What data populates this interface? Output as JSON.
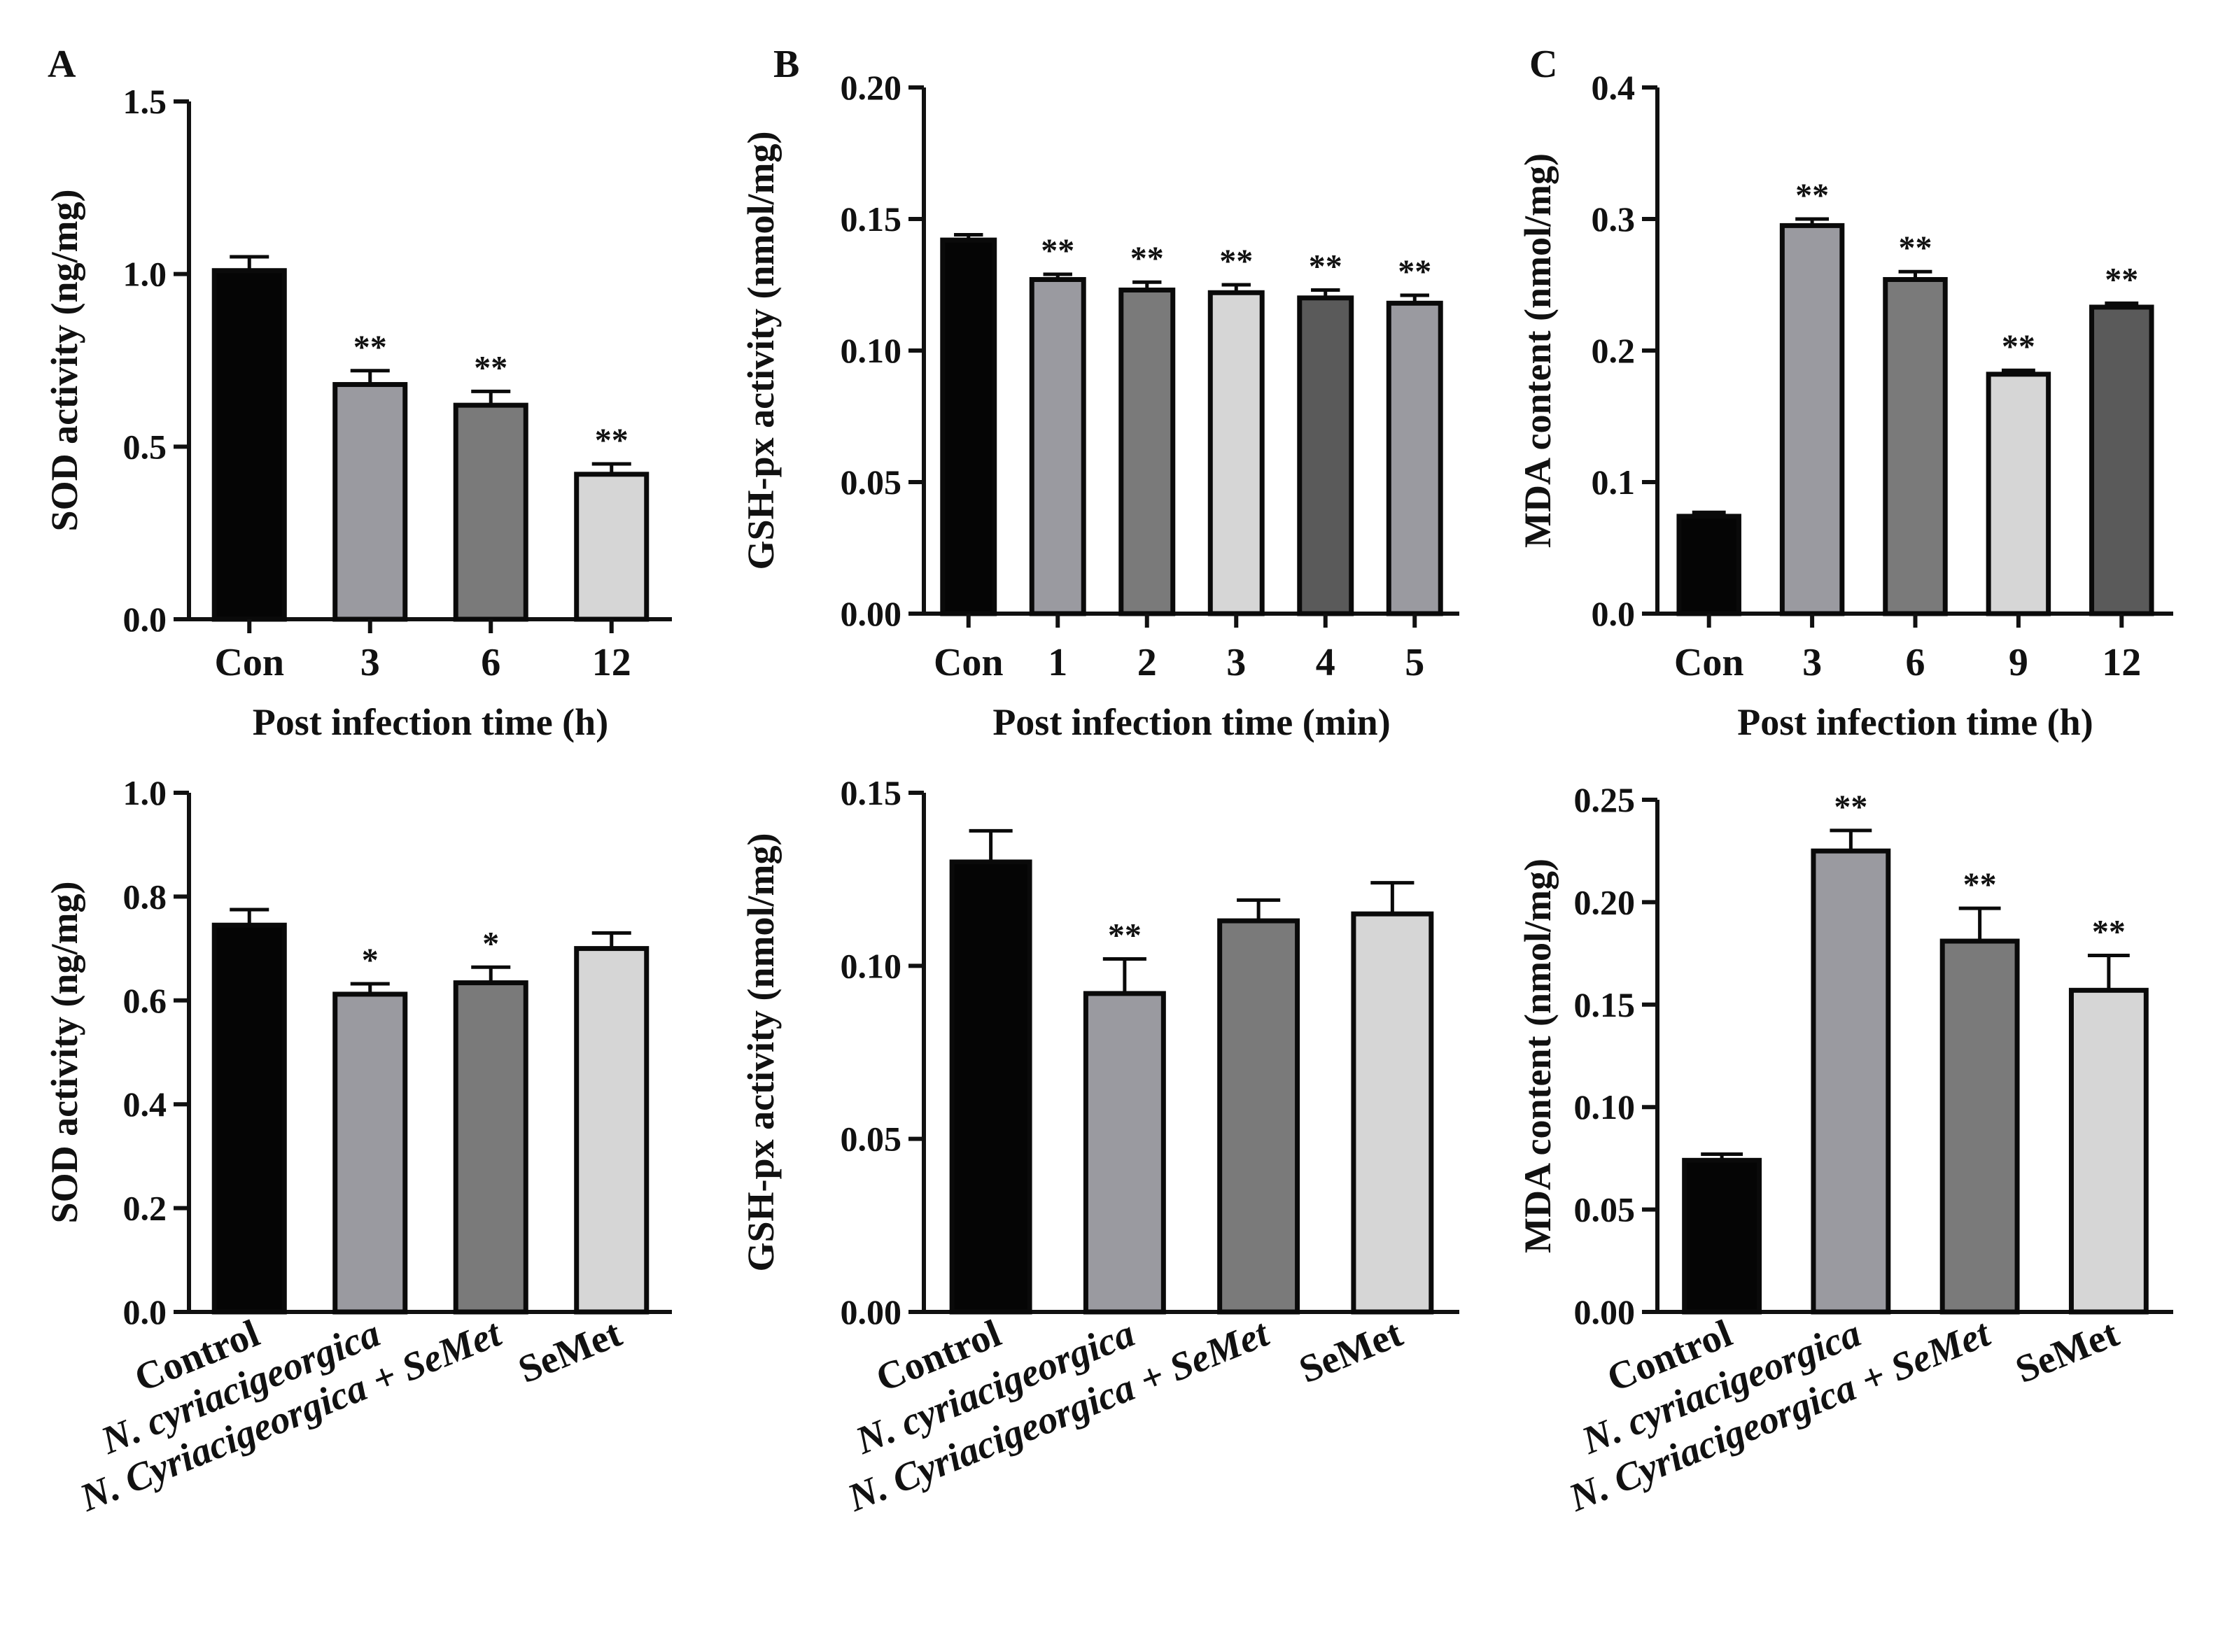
{
  "figure": {
    "colors": {
      "axis": "#111111",
      "bar_stroke": "#0a0a0a",
      "black": "#050505",
      "gray_mid": "#9a9aa0",
      "gray_dark": "#7a7a7a",
      "gray_light": "#d6d6d6",
      "gray_darkest": "#5a5a5a"
    }
  },
  "chart_data": [
    {
      "id": "A-top",
      "type": "bar",
      "panel_letter": "A",
      "categories": [
        "Con",
        "3",
        "6",
        "12"
      ],
      "values": [
        1.01,
        0.68,
        0.62,
        0.42
      ],
      "errors": [
        0.04,
        0.04,
        0.04,
        0.03
      ],
      "significance": [
        "",
        "**",
        "**",
        "**"
      ],
      "bar_colors": [
        "#050505",
        "#9a9aa0",
        "#7a7a7a",
        "#d6d6d6"
      ],
      "xlabel": "Post infection time (h)",
      "ylabel": "SOD activity (ng/mg)",
      "ylim": [
        0,
        1.5
      ],
      "yticks": [
        0.0,
        0.5,
        1.0,
        1.5
      ],
      "ytick_labels": [
        "0.0",
        "0.5",
        "1.0",
        "1.5"
      ],
      "rotated_labels": false,
      "italic_categories": []
    },
    {
      "id": "B-top",
      "type": "bar",
      "panel_letter": "B",
      "categories": [
        "Con",
        "1",
        "2",
        "3",
        "4",
        "5"
      ],
      "values": [
        0.142,
        0.127,
        0.123,
        0.122,
        0.12,
        0.118
      ],
      "errors": [
        0.002,
        0.002,
        0.003,
        0.003,
        0.003,
        0.003
      ],
      "significance": [
        "",
        "**",
        "**",
        "**",
        "**",
        "**"
      ],
      "bar_colors": [
        "#050505",
        "#9a9aa0",
        "#7a7a7a",
        "#d6d6d6",
        "#5a5a5a",
        "#9a9aa0"
      ],
      "xlabel": "Post infection time (min)",
      "ylabel": "GSH-px activity  (nmol/mg)",
      "ylim": [
        0,
        0.2
      ],
      "yticks": [
        0.0,
        0.05,
        0.1,
        0.15,
        0.2
      ],
      "ytick_labels": [
        "0.00",
        "0.05",
        "0.10",
        "0.15",
        "0.20"
      ],
      "rotated_labels": false,
      "italic_categories": []
    },
    {
      "id": "C-top",
      "type": "bar",
      "panel_letter": "C",
      "categories": [
        "Con",
        "3",
        "6",
        "9",
        "12"
      ],
      "values": [
        0.074,
        0.295,
        0.254,
        0.182,
        0.233
      ],
      "errors": [
        0.003,
        0.005,
        0.006,
        0.003,
        0.003
      ],
      "significance": [
        "",
        "**",
        "**",
        "**",
        "**"
      ],
      "bar_colors": [
        "#050505",
        "#9a9aa0",
        "#7a7a7a",
        "#d6d6d6",
        "#5a5a5a"
      ],
      "xlabel": "Post infection time (h)",
      "ylabel": "MDA content (nmol/mg)",
      "ylim": [
        0,
        0.4
      ],
      "yticks": [
        0.0,
        0.1,
        0.2,
        0.3,
        0.4
      ],
      "ytick_labels": [
        "0.0",
        "0.1",
        "0.2",
        "0.3",
        "0.4"
      ],
      "rotated_labels": false,
      "italic_categories": []
    },
    {
      "id": "A-bottom",
      "type": "bar",
      "panel_letter": "",
      "categories": [
        "Control",
        "N. cyriacigeorgica",
        "N. Cyriacigeorgica + SeMet",
        "SeMet"
      ],
      "values": [
        0.745,
        0.612,
        0.634,
        0.7
      ],
      "errors": [
        0.03,
        0.02,
        0.03,
        0.03
      ],
      "significance": [
        "",
        "*",
        "*",
        ""
      ],
      "bar_colors": [
        "#050505",
        "#9a9aa0",
        "#7a7a7a",
        "#d6d6d6"
      ],
      "xlabel": "",
      "ylabel": "SOD  activity (ng/mg)",
      "ylim": [
        0,
        1.0
      ],
      "yticks": [
        0.0,
        0.2,
        0.4,
        0.6,
        0.8,
        1.0
      ],
      "ytick_labels": [
        "0.0",
        "0.2",
        "0.4",
        "0.6",
        "0.8",
        "1.0"
      ],
      "rotated_labels": true,
      "italic_categories": [
        1,
        2
      ]
    },
    {
      "id": "B-bottom",
      "type": "bar",
      "panel_letter": "",
      "categories": [
        "Control",
        "N. cyriacigeorgica",
        "N. Cyriacigeorgica + SeMet",
        "SeMet"
      ],
      "values": [
        0.13,
        0.092,
        0.113,
        0.115
      ],
      "errors": [
        0.009,
        0.01,
        0.006,
        0.009
      ],
      "significance": [
        "",
        "**",
        "",
        ""
      ],
      "bar_colors": [
        "#050505",
        "#9a9aa0",
        "#7a7a7a",
        "#d6d6d6"
      ],
      "xlabel": "",
      "ylabel": "GSH-px activity (nmol/mg)",
      "ylim": [
        0,
        0.15
      ],
      "yticks": [
        0.0,
        0.05,
        0.1,
        0.15
      ],
      "ytick_labels": [
        "0.00",
        "0.05",
        "0.10",
        "0.15"
      ],
      "rotated_labels": true,
      "italic_categories": [
        1,
        2
      ]
    },
    {
      "id": "C-bottom",
      "type": "bar",
      "panel_letter": "",
      "categories": [
        "Control",
        "N. cyriacigeorgica",
        "N. Cyriacigeorgica + SeMet",
        "SeMet"
      ],
      "values": [
        0.074,
        0.225,
        0.181,
        0.157
      ],
      "errors": [
        0.003,
        0.01,
        0.016,
        0.017
      ],
      "significance": [
        "",
        "**",
        "**",
        "**"
      ],
      "bar_colors": [
        "#050505",
        "#9a9aa0",
        "#7a7a7a",
        "#d6d6d6"
      ],
      "xlabel": "",
      "ylabel": "MDA content (nmol/mg)",
      "ylim": [
        0,
        0.25
      ],
      "yticks": [
        0.0,
        0.05,
        0.1,
        0.15,
        0.2,
        0.25
      ],
      "ytick_labels": [
        "0.00",
        "0.05",
        "0.10",
        "0.15",
        "0.20",
        "0.25"
      ],
      "rotated_labels": true,
      "italic_categories": [
        1,
        2
      ]
    }
  ]
}
